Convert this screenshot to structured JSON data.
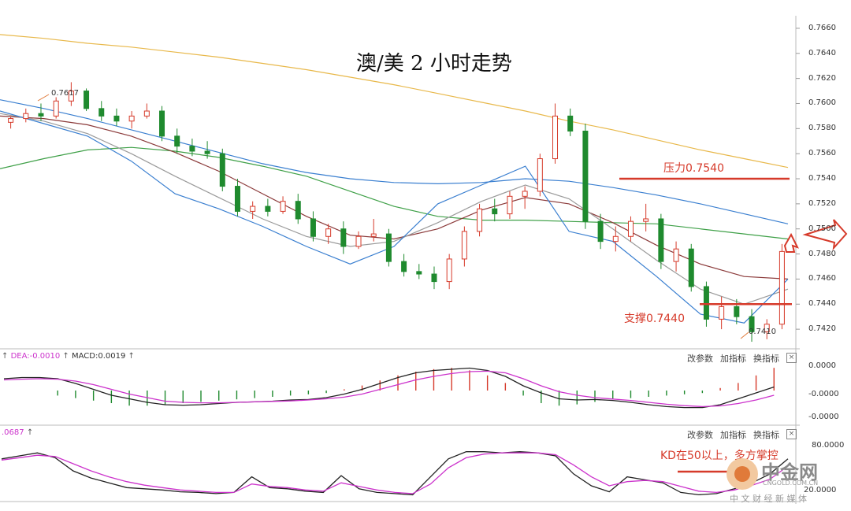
{
  "title": "澳/美 2 小时走势",
  "price_axis": {
    "ticks": [
      "0.7660",
      "0.7640",
      "0.7620",
      "0.7600",
      "0.7580",
      "0.7560",
      "0.7540",
      "0.7520",
      "0.7500",
      "0.7480",
      "0.7460",
      "0.7440",
      "0.7420"
    ]
  },
  "macd_panel": {
    "header": {
      "dea": "DEA:-0.0010",
      "macd": "MACD:0.0019"
    },
    "axis_ticks": [
      "0.0000",
      "-0.0000",
      "-0.0000"
    ],
    "tools": {
      "params": "改参数",
      "add": "加指标",
      "switch": "换指标",
      "close": "×"
    }
  },
  "kd_panel": {
    "header": ".0687",
    "axis_ticks": [
      "80.0000",
      "20.0000"
    ],
    "tools": {
      "params": "改参数",
      "add": "加指标",
      "switch": "换指标",
      "close": "×"
    }
  },
  "annotations": {
    "resistance": "压力0.7540",
    "support": "支撑0.7440",
    "high_tag": "0.7617",
    "low_tag": "0.7410",
    "kd_note": "KD在50以上，多方掌控"
  },
  "watermark": {
    "brand": "中金网",
    "domain": "CNGOLD.COM.CN",
    "tagline": "中 文 财 经 新 媒 体"
  },
  "colors": {
    "up": "#d63a2a",
    "down": "#1f8a2e",
    "ma_long": "#e8b84a",
    "ma_blue": "#3a7fd0",
    "ma_green": "#3fa048",
    "ma_brown": "#8b3a3a",
    "ma_gray": "#9a9a9a",
    "macd_k": "#222222",
    "macd_d": "#cc33cc",
    "annotation": "#d63a2a"
  },
  "chart_data": {
    "type": "candlestick",
    "title": "澳/美 2 小时走势",
    "ylim": [
      0.7405,
      0.767
    ],
    "candles": [
      [
        0.7585,
        0.759,
        0.758,
        0.7588
      ],
      [
        0.7588,
        0.7596,
        0.7585,
        0.7592
      ],
      [
        0.7592,
        0.76,
        0.7586,
        0.759
      ],
      [
        0.759,
        0.7605,
        0.7588,
        0.7602
      ],
      [
        0.7602,
        0.7617,
        0.7598,
        0.761
      ],
      [
        0.761,
        0.7612,
        0.7594,
        0.7596
      ],
      [
        0.7596,
        0.7602,
        0.7586,
        0.759
      ],
      [
        0.759,
        0.7596,
        0.7582,
        0.7586
      ],
      [
        0.7586,
        0.7594,
        0.758,
        0.759
      ],
      [
        0.759,
        0.76,
        0.7588,
        0.7594
      ],
      [
        0.7594,
        0.7598,
        0.757,
        0.7574
      ],
      [
        0.7574,
        0.758,
        0.756,
        0.7566
      ],
      [
        0.7566,
        0.7572,
        0.7558,
        0.7562
      ],
      [
        0.7562,
        0.757,
        0.7556,
        0.756
      ],
      [
        0.756,
        0.7564,
        0.753,
        0.7534
      ],
      [
        0.7534,
        0.754,
        0.751,
        0.7514
      ],
      [
        0.7514,
        0.7522,
        0.7508,
        0.7518
      ],
      [
        0.7518,
        0.7524,
        0.751,
        0.7514
      ],
      [
        0.7514,
        0.7526,
        0.7512,
        0.7522
      ],
      [
        0.7522,
        0.7528,
        0.7504,
        0.7508
      ],
      [
        0.7508,
        0.7514,
        0.749,
        0.7494
      ],
      [
        0.7494,
        0.7504,
        0.7488,
        0.75
      ],
      [
        0.75,
        0.7506,
        0.748,
        0.7486
      ],
      [
        0.7486,
        0.7498,
        0.7484,
        0.7494
      ],
      [
        0.7494,
        0.7508,
        0.749,
        0.7496
      ],
      [
        0.7496,
        0.75,
        0.747,
        0.7474
      ],
      [
        0.7474,
        0.748,
        0.7462,
        0.7466
      ],
      [
        0.7466,
        0.7472,
        0.746,
        0.7464
      ],
      [
        0.7464,
        0.747,
        0.7452,
        0.7458
      ],
      [
        0.7458,
        0.748,
        0.7452,
        0.7476
      ],
      [
        0.7476,
        0.7502,
        0.747,
        0.7498
      ],
      [
        0.7498,
        0.752,
        0.7494,
        0.7516
      ],
      [
        0.7516,
        0.7524,
        0.7506,
        0.7512
      ],
      [
        0.7512,
        0.753,
        0.7508,
        0.7526
      ],
      [
        0.7526,
        0.7534,
        0.7516,
        0.753
      ],
      [
        0.753,
        0.756,
        0.7526,
        0.7556
      ],
      [
        0.7556,
        0.76,
        0.7552,
        0.759
      ],
      [
        0.759,
        0.7596,
        0.7574,
        0.7578
      ],
      [
        0.7578,
        0.7584,
        0.75,
        0.7506
      ],
      [
        0.7506,
        0.7512,
        0.7484,
        0.749
      ],
      [
        0.749,
        0.7502,
        0.7482,
        0.7494
      ],
      [
        0.7494,
        0.751,
        0.749,
        0.7506
      ],
      [
        0.7506,
        0.752,
        0.7498,
        0.7508
      ],
      [
        0.7508,
        0.7512,
        0.7468,
        0.7474
      ],
      [
        0.7474,
        0.749,
        0.7466,
        0.7484
      ],
      [
        0.7484,
        0.7488,
        0.745,
        0.7454
      ],
      [
        0.7454,
        0.7458,
        0.7422,
        0.7428
      ],
      [
        0.7428,
        0.7446,
        0.742,
        0.7438
      ],
      [
        0.7438,
        0.7444,
        0.7424,
        0.743
      ],
      [
        0.743,
        0.7436,
        0.741,
        0.7418
      ],
      [
        0.7418,
        0.7428,
        0.7412,
        0.7424
      ],
      [
        0.7424,
        0.7488,
        0.742,
        0.7482
      ]
    ],
    "ma_lines": [
      {
        "color_key": "ma_long",
        "values": [
          0.7655,
          0.7652,
          0.7648,
          0.7645,
          0.7641,
          0.7637,
          0.7632,
          0.7627,
          0.7621,
          0.7615,
          0.7608,
          0.7601,
          0.7594,
          0.7586,
          0.7579,
          0.7571,
          0.7563,
          0.7556,
          0.7549
        ]
      },
      {
        "color_key": "ma_blue",
        "values": [
          0.7603,
          0.7596,
          0.7588,
          0.7579,
          0.757,
          0.7561,
          0.7552,
          0.7545,
          0.754,
          0.7537,
          0.7536,
          0.7537,
          0.754,
          0.7538,
          0.7533,
          0.7527,
          0.752,
          0.7512,
          0.7504
        ]
      },
      {
        "color_key": "ma_green",
        "values": [
          0.7548,
          0.7556,
          0.7563,
          0.7565,
          0.7562,
          0.7557,
          0.755,
          0.7542,
          0.753,
          0.7518,
          0.751,
          0.7507,
          0.7507,
          0.7506,
          0.7505,
          0.7504,
          0.75,
          0.7496,
          0.7492
        ]
      },
      {
        "color_key": "ma_brown",
        "values": [
          0.759,
          0.7588,
          0.7583,
          0.7574,
          0.7561,
          0.7546,
          0.7528,
          0.751,
          0.7495,
          0.7492,
          0.75,
          0.7515,
          0.7525,
          0.752,
          0.7505,
          0.7487,
          0.7472,
          0.7462,
          0.746
        ]
      },
      {
        "color_key": "ma_gray",
        "values": [
          0.7592,
          0.7586,
          0.7576,
          0.756,
          0.7542,
          0.7525,
          0.7508,
          0.7494,
          0.7486,
          0.749,
          0.7505,
          0.7522,
          0.7535,
          0.7524,
          0.75,
          0.7475,
          0.7452,
          0.744,
          0.7452
        ]
      },
      {
        "color_key": "ma_blue",
        "values": [
          0.7594,
          0.7584,
          0.7574,
          0.7554,
          0.7528,
          0.7516,
          0.7502,
          0.7486,
          0.7472,
          0.7486,
          0.752,
          0.7535,
          0.755,
          0.7498,
          0.749,
          0.7462,
          0.7432,
          0.7425,
          0.746
        ]
      }
    ],
    "levels": [
      {
        "label": "压力0.7540",
        "value": 0.754
      },
      {
        "label": "支撑0.7440",
        "value": 0.744
      }
    ],
    "macd": {
      "hist": [
        0,
        0,
        0,
        -0.2,
        -0.3,
        -0.4,
        -0.5,
        -0.6,
        -0.6,
        -0.55,
        -0.5,
        -0.45,
        -0.4,
        -0.35,
        -0.3,
        -0.25,
        -0.2,
        -0.15,
        -0.1,
        0.05,
        0.2,
        0.4,
        0.6,
        0.75,
        0.85,
        0.9,
        0.8,
        0.6,
        0.3,
        -0.2,
        -0.5,
        -0.6,
        -0.55,
        -0.45,
        -0.35,
        -0.3,
        -0.25,
        -0.2,
        -0.15,
        -0.1,
        0.1,
        0.3,
        0.6,
        0.9
      ],
      "dif": [
        0.5,
        0.55,
        0.55,
        0.5,
        0.3,
        0.05,
        -0.2,
        -0.35,
        -0.5,
        -0.6,
        -0.62,
        -0.6,
        -0.55,
        -0.5,
        -0.48,
        -0.45,
        -0.4,
        -0.38,
        -0.3,
        -0.15,
        0.05,
        0.3,
        0.55,
        0.75,
        0.85,
        0.9,
        0.95,
        0.85,
        0.6,
        0.2,
        -0.1,
        -0.35,
        -0.4,
        -0.38,
        -0.42,
        -0.5,
        -0.6,
        -0.68,
        -0.72,
        -0.72,
        -0.6,
        -0.35,
        -0.1,
        0.15
      ],
      "dea": [
        0.45,
        0.48,
        0.5,
        0.48,
        0.4,
        0.25,
        0.05,
        -0.15,
        -0.3,
        -0.45,
        -0.5,
        -0.52,
        -0.52,
        -0.5,
        -0.48,
        -0.46,
        -0.44,
        -0.4,
        -0.35,
        -0.28,
        -0.15,
        0.05,
        0.25,
        0.45,
        0.6,
        0.72,
        0.8,
        0.82,
        0.75,
        0.5,
        0.2,
        -0.05,
        -0.2,
        -0.3,
        -0.36,
        -0.42,
        -0.5,
        -0.58,
        -0.64,
        -0.68,
        -0.65,
        -0.55,
        -0.4,
        -0.2
      ]
    },
    "kd": {
      "k": [
        70,
        75,
        80,
        72,
        50,
        38,
        30,
        22,
        20,
        18,
        15,
        14,
        12,
        14,
        40,
        22,
        20,
        16,
        14,
        42,
        20,
        14,
        12,
        10,
        40,
        70,
        82,
        82,
        80,
        82,
        80,
        75,
        45,
        25,
        15,
        40,
        35,
        30,
        14,
        10,
        12,
        20,
        30,
        45,
        70
      ],
      "d": [
        68,
        72,
        76,
        74,
        62,
        50,
        40,
        32,
        26,
        22,
        18,
        16,
        14,
        14,
        28,
        24,
        22,
        18,
        16,
        30,
        24,
        18,
        14,
        12,
        28,
        55,
        72,
        78,
        80,
        80,
        80,
        77,
        60,
        40,
        25,
        32,
        34,
        32,
        24,
        16,
        14,
        18,
        26,
        36,
        58
      ]
    }
  }
}
